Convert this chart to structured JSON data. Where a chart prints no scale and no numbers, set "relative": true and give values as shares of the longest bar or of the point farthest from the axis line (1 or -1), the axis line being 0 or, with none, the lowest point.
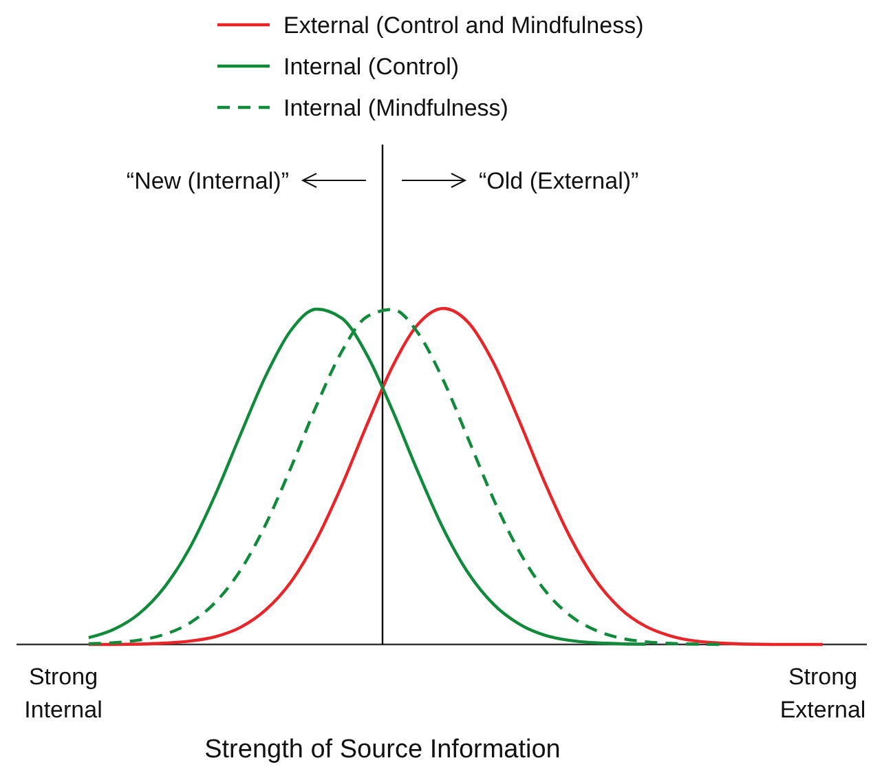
{
  "chart_data": {
    "type": "line",
    "relative": true,
    "xlabel": "Strength of Source Information",
    "categories": [
      null,
      null,
      "Strong Internal",
      null,
      null,
      null,
      null,
      null,
      null,
      null,
      null,
      null,
      null,
      null,
      null,
      null,
      null,
      null,
      null,
      null,
      null,
      null,
      null,
      null,
      null,
      null,
      null,
      null,
      null,
      null,
      null,
      null,
      "Strong External",
      null
    ],
    "series": [
      {
        "name": "External (Control and Mindfulness)",
        "color": "#e8262a",
        "line_style": "solid",
        "values": [
          null,
          null,
          null,
          0.0,
          0.0,
          0.001,
          0.004,
          0.01,
          0.023,
          0.051,
          0.103,
          0.187,
          0.312,
          0.473,
          0.655,
          0.827,
          0.952,
          1.0,
          0.958,
          0.837,
          0.667,
          0.485,
          0.322,
          0.194,
          0.107,
          0.054,
          0.025,
          0.01,
          0.004,
          0.001,
          0.0,
          0.0,
          0.0,
          null
        ]
      },
      {
        "name": "Internal (Control)",
        "color": "#118a3c",
        "line_style": "solid",
        "values": [
          null,
          null,
          null,
          0.02,
          0.045,
          0.092,
          0.171,
          0.288,
          0.445,
          0.625,
          0.8,
          0.936,
          0.998,
          0.971,
          0.861,
          0.697,
          0.515,
          0.346,
          0.212,
          0.119,
          0.061,
          0.028,
          0.012,
          0.005,
          0.002,
          0.001,
          null,
          null,
          null,
          null,
          null,
          null,
          null,
          null
        ]
      },
      {
        "name": "Internal (Mindfulness)",
        "color": "#118a3c",
        "line_style": "dashed",
        "values": [
          null,
          null,
          null,
          0.002,
          0.005,
          0.013,
          0.03,
          0.064,
          0.125,
          0.221,
          0.358,
          0.528,
          0.711,
          0.872,
          0.976,
          0.997,
          0.928,
          0.788,
          0.611,
          0.431,
          0.278,
          0.163,
          0.087,
          0.043,
          0.019,
          0.008,
          0.003,
          0.001,
          0.0,
          null,
          null,
          null,
          null,
          null
        ]
      }
    ],
    "annotations": [
      "“New (Internal)”",
      "“Old (External)”"
    ],
    "legend": "top"
  }
}
